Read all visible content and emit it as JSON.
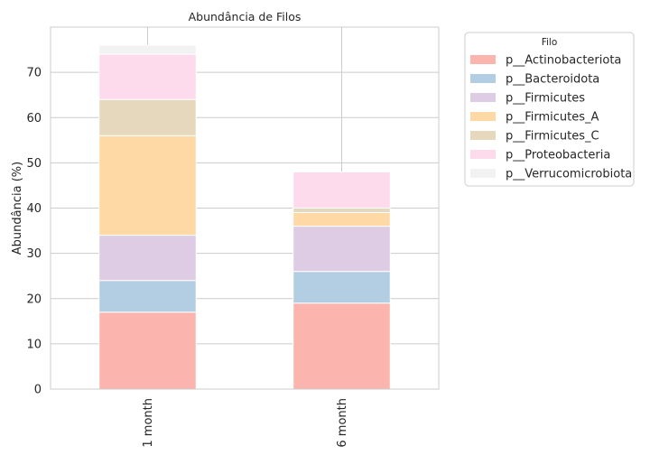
{
  "chart_data": {
    "type": "bar",
    "stacked": true,
    "title": "Abundância de Filos",
    "xlabel": "",
    "ylabel": "Abundância (%)",
    "ylim": [
      0,
      80
    ],
    "yticks": [
      0,
      10,
      20,
      30,
      40,
      50,
      60,
      70
    ],
    "grid": true,
    "categories": [
      "1 month",
      "6 month"
    ],
    "legend": {
      "title": "Filo",
      "placement": "outside upper right"
    },
    "series": [
      {
        "name": "p__Actinobacteriota",
        "color": "#fbb4ae",
        "values": [
          17,
          19
        ]
      },
      {
        "name": "p__Bacteroidota",
        "color": "#b3cde3",
        "values": [
          7,
          7
        ]
      },
      {
        "name": "p__Firmicutes",
        "color": "#decbe4",
        "values": [
          10,
          10
        ]
      },
      {
        "name": "p__Firmicutes_A",
        "color": "#fed9a6",
        "values": [
          22,
          3
        ]
      },
      {
        "name": "p__Firmicutes_C",
        "color": "#e5d8bd",
        "values": [
          8,
          1
        ]
      },
      {
        "name": "p__Proteobacteria",
        "color": "#fddaec",
        "values": [
          10,
          8
        ]
      },
      {
        "name": "p__Verrucomicrobiota",
        "color": "#f2f2f2",
        "values": [
          2,
          0
        ]
      }
    ]
  }
}
